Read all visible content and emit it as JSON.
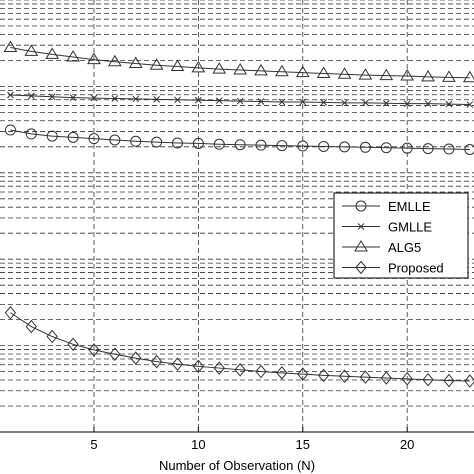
{
  "chart_data": {
    "type": "line",
    "title": "",
    "xlabel": "Number of Observation (N)",
    "ylabel": "",
    "xlim": [
      0.5,
      23.2
    ],
    "ylim": [
      0,
      1
    ],
    "xticks": [
      5,
      10,
      15,
      20
    ],
    "y_scale": "log",
    "grid": true,
    "legend_position": "right",
    "colors": {
      "line": "#333333",
      "grid": "#333333",
      "axis": "#000000",
      "background": "#ffffff"
    },
    "x": [
      1,
      2,
      3,
      4,
      5,
      6,
      7,
      8,
      9,
      10,
      11,
      12,
      13,
      14,
      15,
      16,
      17,
      18,
      19,
      20,
      21,
      22,
      23
    ],
    "series": [
      {
        "name": "EMLLE",
        "marker": "circle",
        "values": [
          0.699,
          0.69,
          0.685,
          0.682,
          0.679,
          0.676,
          0.673,
          0.671,
          0.669,
          0.668,
          0.666,
          0.665,
          0.664,
          0.663,
          0.662,
          0.661,
          0.66,
          0.659,
          0.658,
          0.657,
          0.656,
          0.655,
          0.654
        ]
      },
      {
        "name": "GMLLE",
        "marker": "x",
        "values": [
          0.78,
          0.778,
          0.776,
          0.774,
          0.773,
          0.772,
          0.771,
          0.77,
          0.769,
          0.768,
          0.767,
          0.766,
          0.765,
          0.764,
          0.764,
          0.763,
          0.762,
          0.762,
          0.761,
          0.76,
          0.76,
          0.759,
          0.758
        ]
      },
      {
        "name": "ALG5",
        "marker": "triangle",
        "values": [
          0.89,
          0.881,
          0.874,
          0.868,
          0.862,
          0.857,
          0.853,
          0.849,
          0.846,
          0.843,
          0.84,
          0.838,
          0.836,
          0.834,
          0.832,
          0.83,
          0.828,
          0.826,
          0.825,
          0.824,
          0.822,
          0.821,
          0.82
        ]
      },
      {
        "name": "Proposed",
        "marker": "diamond",
        "values": [
          0.276,
          0.244,
          0.221,
          0.203,
          0.19,
          0.18,
          0.171,
          0.163,
          0.157,
          0.152,
          0.148,
          0.144,
          0.14,
          0.137,
          0.134,
          0.131,
          0.129,
          0.127,
          0.125,
          0.123,
          0.121,
          0.119,
          0.118
        ]
      }
    ]
  }
}
